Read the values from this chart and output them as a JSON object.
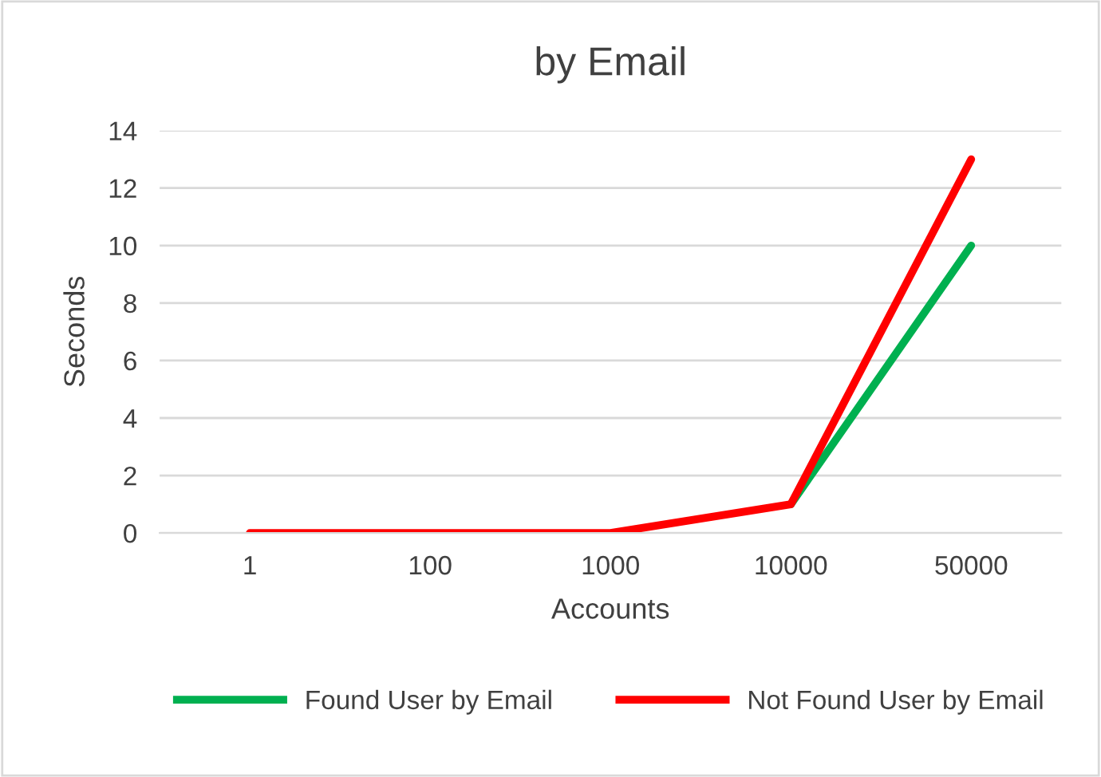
{
  "chart_data": {
    "type": "line",
    "title": "by Email",
    "xlabel": "Accounts",
    "ylabel": "Seconds",
    "categories": [
      "1",
      "100",
      "1000",
      "10000",
      "50000"
    ],
    "series": [
      {
        "name": "Found User by Email",
        "color": "#00b050",
        "values": [
          null,
          null,
          null,
          1,
          10
        ]
      },
      {
        "name": "Not Found User by Email",
        "color": "#ff0000",
        "values": [
          0,
          0,
          0,
          1,
          13
        ]
      }
    ],
    "ylim": [
      0,
      14
    ],
    "yticks": [
      0,
      2,
      4,
      6,
      8,
      10,
      12,
      14
    ],
    "grid": "y",
    "legend": "bottom",
    "marker": "none",
    "line_style": "solid"
  }
}
